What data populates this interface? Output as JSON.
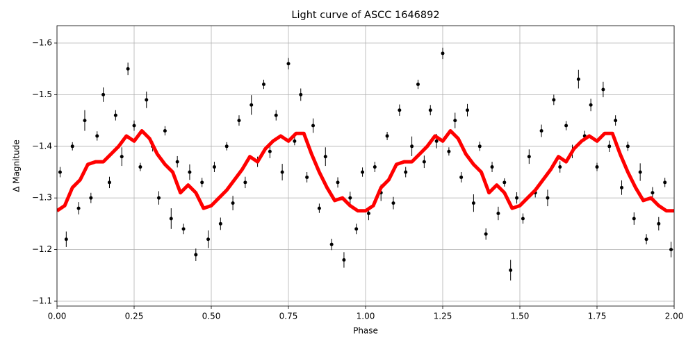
{
  "chart_data": {
    "type": "scatter",
    "title": "Light curve of ASCC 1646892",
    "x_label": "Phase",
    "y_label": "Δ Magnitude",
    "xlim": [
      0,
      2
    ],
    "ylim": [
      -1.0906,
      -1.6336
    ],
    "xticks": [
      {
        "value": 0,
        "label": "0.00"
      },
      {
        "value": 0.25,
        "label": "0.25"
      },
      {
        "value": 0.5,
        "label": "0.50"
      },
      {
        "value": 0.75,
        "label": "0.75"
      },
      {
        "value": 1,
        "label": "1.00"
      },
      {
        "value": 1.25,
        "label": "1.25"
      },
      {
        "value": 1.5,
        "label": "1.50"
      },
      {
        "value": 1.75,
        "label": "1.75"
      },
      {
        "value": 2,
        "label": "2.00"
      }
    ],
    "yticks": [
      {
        "value": -1.1,
        "label": "−1.1"
      },
      {
        "value": -1.2,
        "label": "−1.2"
      },
      {
        "value": -1.3,
        "label": "−1.3"
      },
      {
        "value": -1.4,
        "label": "−1.4"
      },
      {
        "value": -1.5,
        "label": "−1.5"
      },
      {
        "value": -1.6,
        "label": "−1.6"
      }
    ],
    "grid": true,
    "series": [
      {
        "type": "scatter",
        "color": "#000000",
        "x": [
          0.01,
          0.03,
          0.05,
          0.07,
          0.09,
          0.11,
          0.13,
          0.15,
          0.17,
          0.19,
          0.21,
          0.23,
          0.25,
          0.27,
          0.29,
          0.31,
          0.33,
          0.35,
          0.37,
          0.39,
          0.41,
          0.43,
          0.45,
          0.47,
          0.49,
          0.51,
          0.53,
          0.55,
          0.57,
          0.59,
          0.61,
          0.63,
          0.65,
          0.67,
          0.69,
          0.71,
          0.73,
          0.75,
          0.77,
          0.79,
          0.81,
          0.83,
          0.85,
          0.87,
          0.89,
          0.91,
          0.93,
          0.95,
          0.97,
          0.99,
          1.01,
          1.03,
          1.05,
          1.07,
          1.09,
          1.11,
          1.13,
          1.15,
          1.17,
          1.19,
          1.21,
          1.23,
          1.25,
          1.27,
          1.29,
          1.31,
          1.33,
          1.35,
          1.37,
          1.39,
          1.41,
          1.43,
          1.45,
          1.47,
          1.49,
          1.51,
          1.53,
          1.55,
          1.57,
          1.59,
          1.61,
          1.63,
          1.65,
          1.67,
          1.69,
          1.71,
          1.73,
          1.75,
          1.77,
          1.79,
          1.81,
          1.83,
          1.85,
          1.87,
          1.89,
          1.91,
          1.93,
          1.95,
          1.97,
          1.99
        ],
        "values": [
          -1.35,
          -1.22,
          -1.4,
          -1.28,
          -1.45,
          -1.3,
          -1.42,
          -1.5,
          -1.33,
          -1.46,
          -1.38,
          -1.55,
          -1.44,
          -1.36,
          -1.49,
          -1.4,
          -1.3,
          -1.43,
          -1.26,
          -1.37,
          -1.24,
          -1.35,
          -1.19,
          -1.33,
          -1.22,
          -1.36,
          -1.25,
          -1.4,
          -1.29,
          -1.45,
          -1.33,
          -1.48,
          -1.37,
          -1.52,
          -1.39,
          -1.46,
          -1.35,
          -1.56,
          -1.41,
          -1.5,
          -1.34,
          -1.44,
          -1.28,
          -1.38,
          -1.21,
          -1.33,
          -1.18,
          -1.3,
          -1.24,
          -1.35,
          -1.27,
          -1.36,
          -1.31,
          -1.42,
          -1.29,
          -1.47,
          -1.35,
          -1.4,
          -1.52,
          -1.37,
          -1.47,
          -1.41,
          -1.58,
          -1.39,
          -1.45,
          -1.34,
          -1.47,
          -1.29,
          -1.4,
          -1.23,
          -1.36,
          -1.27,
          -1.33,
          -1.16,
          -1.3,
          -1.26,
          -1.38,
          -1.31,
          -1.43,
          -1.3,
          -1.49,
          -1.36,
          -1.44,
          -1.39,
          -1.53,
          -1.42,
          -1.48,
          -1.36,
          -1.51,
          -1.4,
          -1.45,
          -1.32,
          -1.4,
          -1.26,
          -1.35,
          -1.22,
          -1.31,
          -1.25,
          -1.33,
          -1.2
        ],
        "errors": [
          0.01,
          0.015,
          0.008,
          0.012,
          0.02,
          0.01,
          0.009,
          0.014,
          0.011,
          0.01,
          0.018,
          0.012,
          0.01,
          0.008,
          0.016,
          0.01,
          0.013,
          0.009,
          0.02,
          0.011,
          0.01,
          0.015,
          0.012,
          0.009,
          0.017,
          0.01,
          0.012,
          0.008,
          0.014,
          0.01,
          0.011,
          0.019,
          0.01,
          0.009,
          0.013,
          0.01,
          0.016,
          0.011,
          0.008,
          0.012,
          0.01,
          0.014,
          0.009,
          0.018,
          0.011,
          0.01,
          0.015,
          0.012,
          0.01,
          0.009,
          0.013,
          0.01,
          0.016,
          0.008,
          0.012,
          0.011,
          0.01,
          0.019,
          0.009,
          0.012,
          0.01,
          0.014,
          0.011,
          0.008,
          0.015,
          0.01,
          0.012,
          0.017,
          0.009,
          0.011,
          0.01,
          0.013,
          0.008,
          0.02,
          0.011,
          0.01,
          0.014,
          0.009,
          0.012,
          0.016,
          0.01,
          0.011,
          0.009,
          0.013,
          0.018,
          0.01,
          0.012,
          0.008,
          0.015,
          0.011,
          0.01,
          0.014,
          0.009,
          0.012,
          0.017,
          0.01,
          0.011,
          0.013,
          0.009,
          0.015
        ]
      },
      {
        "type": "line",
        "color": "#ff0000",
        "x": [
          0,
          0.025,
          0.05,
          0.075,
          0.1,
          0.125,
          0.15,
          0.175,
          0.2,
          0.225,
          0.25,
          0.275,
          0.3,
          0.325,
          0.35,
          0.375,
          0.4,
          0.425,
          0.45,
          0.475,
          0.5,
          0.525,
          0.55,
          0.575,
          0.6,
          0.625,
          0.65,
          0.675,
          0.7,
          0.725,
          0.75,
          0.775,
          0.8,
          0.825,
          0.85,
          0.875,
          0.9,
          0.925,
          0.95,
          0.975,
          1,
          1.025,
          1.05,
          1.075,
          1.1,
          1.125,
          1.15,
          1.175,
          1.2,
          1.225,
          1.25,
          1.275,
          1.3,
          1.325,
          1.35,
          1.375,
          1.4,
          1.425,
          1.45,
          1.475,
          1.5,
          1.525,
          1.55,
          1.575,
          1.6,
          1.625,
          1.65,
          1.675,
          1.7,
          1.725,
          1.75,
          1.775,
          1.8,
          1.825,
          1.85,
          1.875,
          1.9,
          1.925,
          1.95,
          1.975,
          2
        ],
        "values": [
          -1.275,
          -1.285,
          -1.32,
          -1.335,
          -1.365,
          -1.37,
          -1.37,
          -1.385,
          -1.4,
          -1.42,
          -1.41,
          -1.43,
          -1.415,
          -1.385,
          -1.365,
          -1.35,
          -1.31,
          -1.325,
          -1.31,
          -1.28,
          -1.285,
          -1.3,
          -1.315,
          -1.335,
          -1.355,
          -1.38,
          -1.37,
          -1.395,
          -1.41,
          -1.42,
          -1.41,
          -1.425,
          -1.425,
          -1.385,
          -1.35,
          -1.32,
          -1.295,
          -1.3,
          -1.285,
          -1.275,
          -1.275,
          -1.285,
          -1.32,
          -1.335,
          -1.365,
          -1.37,
          -1.37,
          -1.385,
          -1.4,
          -1.42,
          -1.41,
          -1.43,
          -1.415,
          -1.385,
          -1.365,
          -1.35,
          -1.31,
          -1.325,
          -1.31,
          -1.28,
          -1.285,
          -1.3,
          -1.315,
          -1.335,
          -1.355,
          -1.38,
          -1.37,
          -1.395,
          -1.41,
          -1.42,
          -1.41,
          -1.425,
          -1.425,
          -1.385,
          -1.35,
          -1.32,
          -1.295,
          -1.3,
          -1.285,
          -1.275,
          -1.275
        ]
      }
    ]
  }
}
